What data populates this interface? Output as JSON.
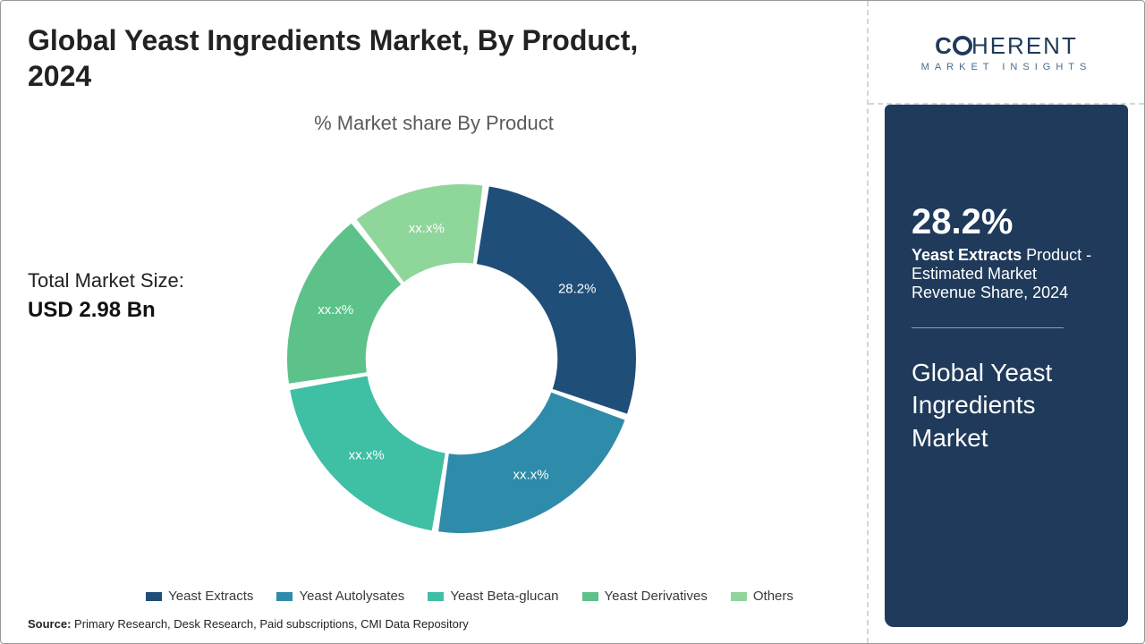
{
  "title": "Global Yeast Ingredients Market, By Product, 2024",
  "chart_subtitle": "% Market share By Product",
  "market_size_label": "Total Market Size:",
  "market_size_value": "USD 2.98 Bn",
  "source_label": "Source:",
  "source_text": " Primary Research, Desk Research, Paid subscriptions, CMI Data Repository",
  "logo": {
    "line1_a": "C",
    "line1_b": "HERENT",
    "line2": "MARKET INSIGHTS"
  },
  "side_panel": {
    "stat_value": "28.2%",
    "stat_line1_bold": "Yeast Extracts",
    "stat_line1_rest": " Product -",
    "stat_line2": "Estimated Market",
    "stat_line3": "Revenue Share, 2024",
    "panel_title_l1": "Global Yeast",
    "panel_title_l2": "Ingredients",
    "panel_title_l3": "Market",
    "bg_color": "#1f3a5a"
  },
  "donut": {
    "type": "donut",
    "inner_radius_ratio": 0.55,
    "gap_deg": 2.2,
    "background_color": "#ffffff",
    "segments": [
      {
        "name": "Yeast Extracts",
        "value": 28.2,
        "color": "#1f4e79",
        "label": "28.2%"
      },
      {
        "name": "Yeast Autolysates",
        "value": 22.0,
        "color": "#2e8ba9",
        "label": "xx.x%"
      },
      {
        "name": "Yeast Beta-glucan",
        "value": 20.0,
        "color": "#3fbfa4",
        "label": "xx.x%"
      },
      {
        "name": "Yeast Derivatives",
        "value": 17.0,
        "color": "#5dc289",
        "label": "xx.x%"
      },
      {
        "name": "Others",
        "value": 12.8,
        "color": "#8fd69a",
        "label": "xx.x%"
      }
    ],
    "legend_colors": [
      "#1f4e79",
      "#2e8ba9",
      "#3fbfa4",
      "#5dc289",
      "#8fd69a"
    ]
  }
}
